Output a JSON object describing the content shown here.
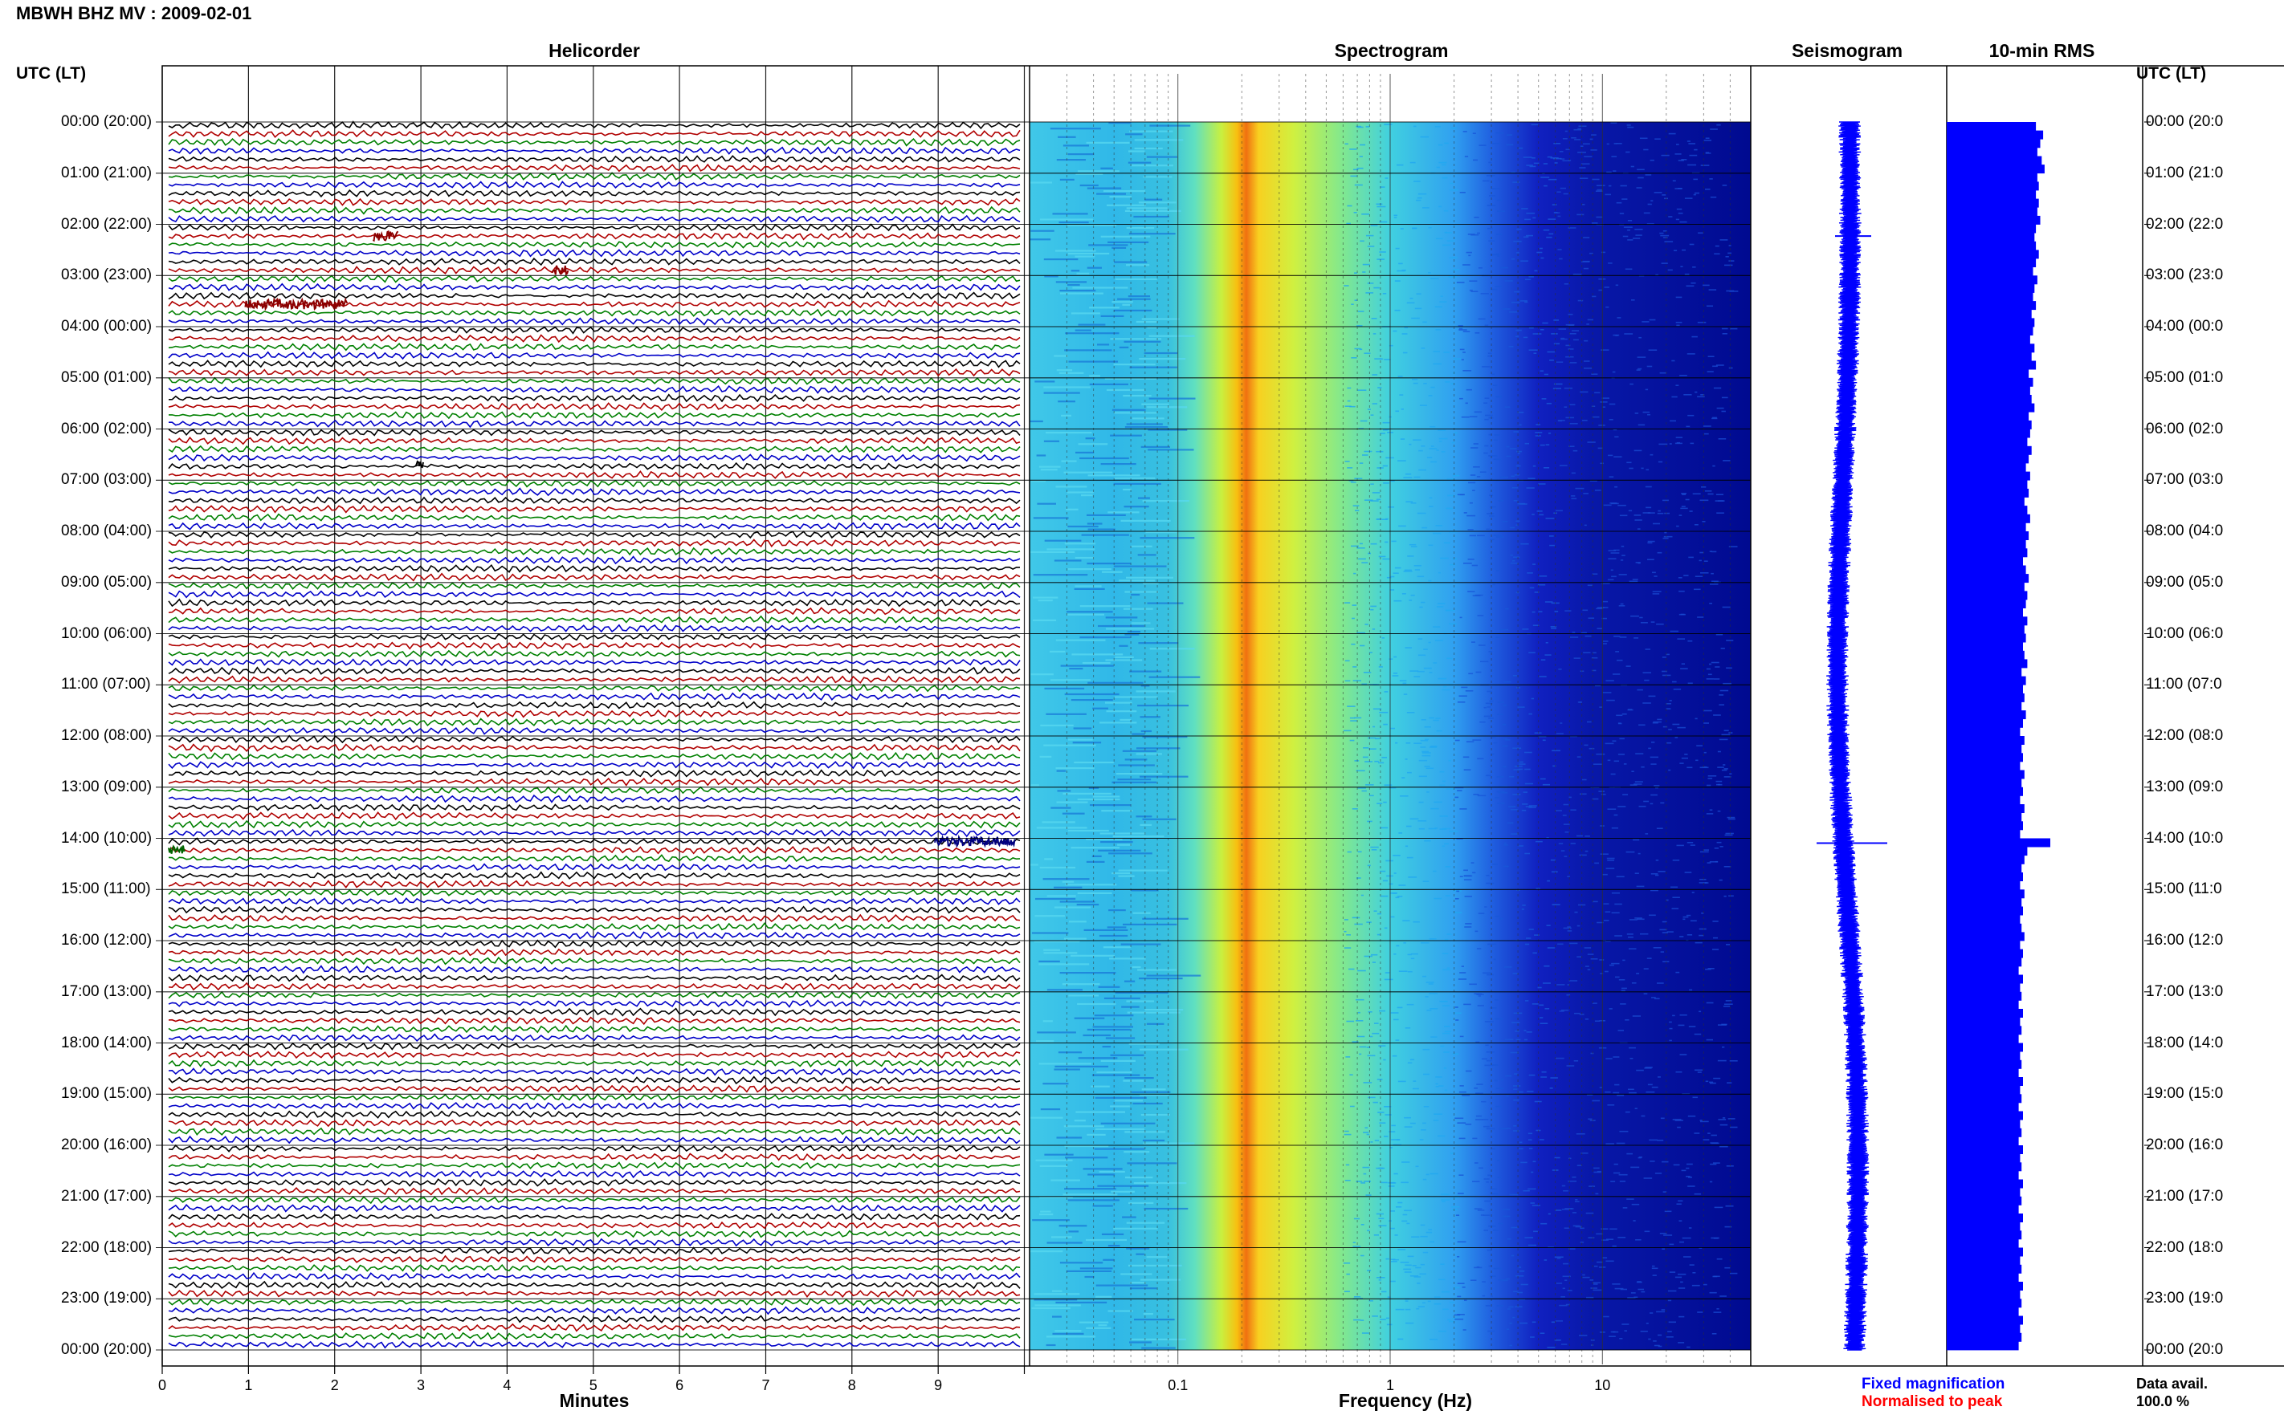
{
  "header": {
    "title": "MBWH BHZ MV : 2009-02-01",
    "utc_left": "UTC (LT)",
    "utc_right": "UTC (LT)"
  },
  "panels": {
    "helicorder": "Helicorder",
    "spectrogram": "Spectrogram",
    "seismogram": "Seismogram",
    "rms": "10-min RMS"
  },
  "axes": {
    "minutes_title": "Minutes",
    "frequency_title": "Frequency (Hz)",
    "minute_ticks": [
      "0",
      "1",
      "2",
      "3",
      "4",
      "5",
      "6",
      "7",
      "8",
      "9"
    ],
    "frequency_ticks": [
      "0.1",
      "1",
      "10"
    ]
  },
  "legend": {
    "fixed": "Fixed magnification",
    "normalised": "Normalised to peak"
  },
  "availability": {
    "label": "Data avail.",
    "value": "100.0 %"
  },
  "colors": {
    "trace_cycle": [
      "#000000",
      "#b00000",
      "#008000",
      "#0000c8"
    ],
    "spec_background": "#00008b",
    "seismogram": "#0000ff",
    "rms": "#0000ff"
  },
  "chart_data": {
    "type": "heatmap",
    "title": "MBWH BHZ MV : 2009-02-01",
    "hours_utc": [
      "00:00 (20:00)",
      "01:00 (21:00)",
      "02:00 (22:00)",
      "03:00 (23:00)",
      "04:00 (00:00)",
      "05:00 (01:00)",
      "06:00 (02:00)",
      "07:00 (03:00)",
      "08:00 (04:00)",
      "09:00 (05:00)",
      "10:00 (06:00)",
      "11:00 (07:00)",
      "12:00 (08:00)",
      "13:00 (09:00)",
      "14:00 (10:00)",
      "15:00 (11:00)",
      "16:00 (12:00)",
      "17:00 (13:00)",
      "18:00 (14:00)",
      "19:00 (15:00)",
      "20:00 (16:00)",
      "21:00 (17:00)",
      "22:00 (18:00)",
      "23:00 (19:00)",
      "00:00 (20:00)"
    ],
    "hours_right": [
      "00:00 (20:0",
      "01:00 (21:0",
      "02:00 (22:0",
      "03:00 (23:0",
      "04:00 (00:0",
      "05:00 (01:0",
      "06:00 (02:0",
      "07:00 (03:0",
      "08:00 (04:0",
      "09:00 (05:0",
      "10:00 (06:0",
      "11:00 (07:0",
      "12:00 (08:0",
      "13:00 (09:0",
      "14:00 (10:0",
      "15:00 (11:0",
      "16:00 (12:0",
      "17:00 (13:0",
      "18:00 (14:0",
      "19:00 (15:0",
      "20:00 (16:0",
      "21:00 (17:0",
      "22:00 (18:0",
      "23:00 (19:0",
      "00:00 (20:0"
    ],
    "helicorder_xlim_minutes": [
      0,
      10
    ],
    "spectrogram_xlim_hz": [
      0.02,
      50
    ],
    "spectrogram_xscale": "log",
    "rms_10min_relative": [
      0.62,
      0.67,
      0.65,
      0.63,
      0.66,
      0.68,
      0.63,
      0.64,
      0.62,
      0.64,
      0.63,
      0.65,
      0.62,
      0.61,
      0.62,
      0.64,
      0.62,
      0.6,
      0.63,
      0.61,
      0.6,
      0.62,
      0.59,
      0.61,
      0.6,
      0.58,
      0.61,
      0.59,
      0.62,
      0.57,
      0.6,
      0.58,
      0.59,
      0.61,
      0.57,
      0.59,
      0.58,
      0.56,
      0.59,
      0.57,
      0.55,
      0.58,
      0.56,
      0.57,
      0.54,
      0.56,
      0.58,
      0.55,
      0.57,
      0.55,
      0.56,
      0.53,
      0.55,
      0.57,
      0.54,
      0.56,
      0.55,
      0.53,
      0.56,
      0.54,
      0.55,
      0.53,
      0.54,
      0.56,
      0.52,
      0.55,
      0.53,
      0.54,
      0.52,
      0.55,
      0.53,
      0.51,
      0.54,
      0.52,
      0.53,
      0.51,
      0.54,
      0.52,
      0.53,
      0.51,
      0.54,
      0.52,
      0.53,
      0.51,
      0.72,
      0.56,
      0.54,
      0.52,
      0.53,
      0.51,
      0.54,
      0.52,
      0.53,
      0.51,
      0.52,
      0.54,
      0.51,
      0.53,
      0.52,
      0.5,
      0.53,
      0.51,
      0.52,
      0.5,
      0.53,
      0.51,
      0.52,
      0.5,
      0.53,
      0.51,
      0.52,
      0.5,
      0.53,
      0.51,
      0.52,
      0.5,
      0.53,
      0.51,
      0.52,
      0.5,
      0.53,
      0.51,
      0.52,
      0.5,
      0.53,
      0.51,
      0.52,
      0.5,
      0.53,
      0.51,
      0.52,
      0.5,
      0.53,
      0.51,
      0.52,
      0.5,
      0.53,
      0.51,
      0.52,
      0.5,
      0.53,
      0.51,
      0.52,
      0.5
    ]
  }
}
